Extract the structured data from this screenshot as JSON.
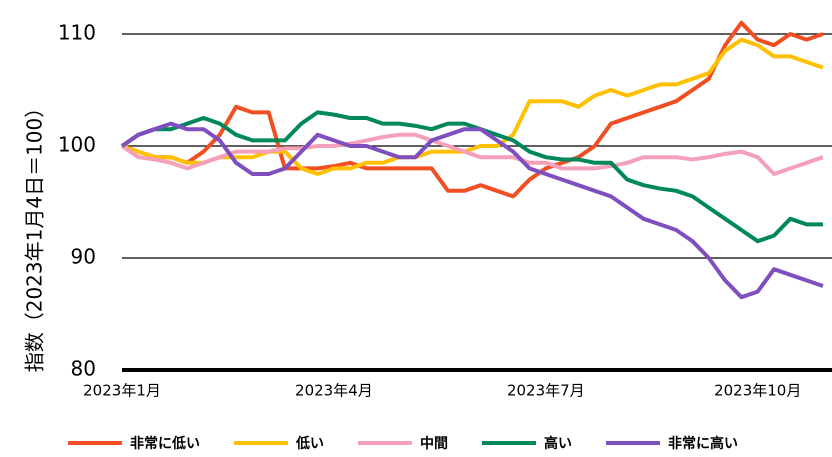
{
  "chart_data": {
    "type": "line",
    "y_label": "指数（2023年1月4日＝100）",
    "categories": [
      "2023年1月",
      null,
      null,
      null,
      null,
      null,
      null,
      null,
      null,
      null,
      null,
      null,
      null,
      "2023年4月",
      null,
      null,
      null,
      null,
      null,
      null,
      null,
      null,
      null,
      null,
      null,
      null,
      "2023年7月",
      null,
      null,
      null,
      null,
      null,
      null,
      null,
      null,
      null,
      null,
      null,
      null,
      "2023年10月",
      null,
      null,
      null,
      null
    ],
    "ylim": [
      80,
      112
    ],
    "yticks": [
      80,
      90,
      100,
      110
    ],
    "grid": true,
    "legend": "bottom",
    "series": [
      {
        "name": "非常に低い",
        "color": "#f04e23",
        "values": [
          100,
          99.5,
          99,
          99,
          98.5,
          99.5,
          101,
          103.5,
          103,
          103,
          98,
          98,
          98,
          98.2,
          98.5,
          98,
          98,
          98,
          98,
          98,
          96,
          96,
          96.5,
          96,
          95.5,
          97,
          98,
          98.5,
          99,
          100,
          102,
          102.5,
          103,
          103.5,
          104,
          105,
          106,
          109,
          111,
          109.5,
          109,
          110,
          109.5,
          110
        ]
      },
      {
        "name": "低い",
        "color": "#ffc000",
        "values": [
          100,
          99.5,
          99,
          99,
          98.5,
          98.5,
          99,
          99,
          99,
          99.5,
          99.5,
          98,
          97.5,
          98,
          98,
          98.5,
          98.5,
          99,
          99,
          99.5,
          99.5,
          99.5,
          100,
          100,
          101,
          104,
          104,
          104,
          103.5,
          104.5,
          105,
          104.5,
          105,
          105.5,
          105.5,
          106,
          106.5,
          108.5,
          109.5,
          109,
          108,
          108,
          107.5,
          107
        ]
      },
      {
        "name": "中間",
        "color": "#f4a0b8",
        "values": [
          100,
          99,
          98.8,
          98.5,
          98,
          98.5,
          99,
          99.5,
          99.5,
          99.5,
          99.8,
          99.8,
          100,
          100,
          100.2,
          100.5,
          100.8,
          101,
          101,
          100.5,
          100,
          99.5,
          99,
          99,
          99,
          98.5,
          98.5,
          98,
          98,
          98,
          98.2,
          98.5,
          99,
          99,
          99,
          98.8,
          99,
          99.3,
          99.5,
          99,
          97.5,
          98,
          98.5,
          99
        ]
      },
      {
        "name": "高い",
        "color": "#00875a",
        "values": [
          100,
          101,
          101.5,
          101.5,
          102,
          102.5,
          102,
          101,
          100.5,
          100.5,
          100.5,
          102,
          103,
          102.8,
          102.5,
          102.5,
          102,
          102,
          101.8,
          101.5,
          102,
          102,
          101.5,
          101,
          100.5,
          99.5,
          99,
          98.8,
          98.8,
          98.5,
          98.5,
          97,
          96.5,
          96.2,
          96,
          95.5,
          94.5,
          93.5,
          92.5,
          91.5,
          92,
          93.5,
          93,
          93
        ]
      },
      {
        "name": "非常に高い",
        "color": "#7f4fbf",
        "values": [
          100,
          101,
          101.5,
          102,
          101.5,
          101.5,
          100.5,
          98.5,
          97.5,
          97.5,
          98,
          99.5,
          101,
          100.5,
          100,
          100,
          99.5,
          99,
          99,
          100.5,
          101,
          101.5,
          101.5,
          100.5,
          99.5,
          98,
          97.5,
          97,
          96.5,
          96,
          95.5,
          94.5,
          93.5,
          93,
          92.5,
          91.5,
          90,
          88,
          86.5,
          87,
          89,
          88.5,
          88,
          87.5
        ]
      }
    ]
  }
}
